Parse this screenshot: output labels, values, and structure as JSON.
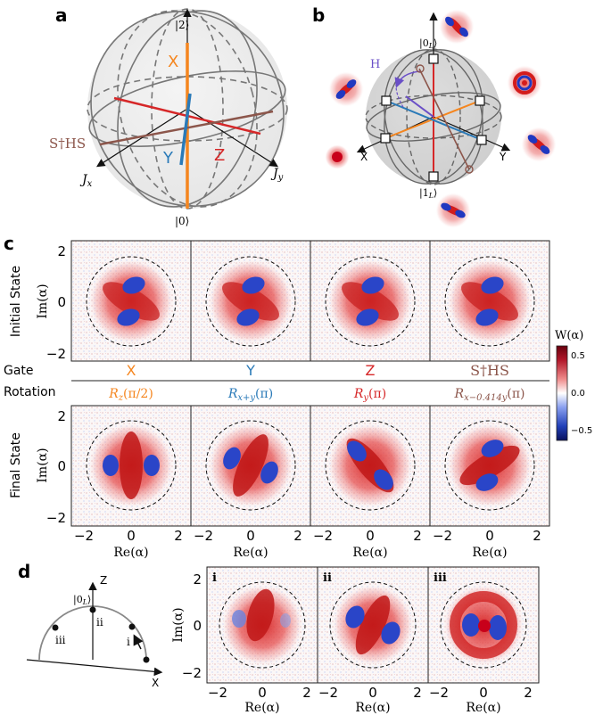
{
  "panel_a": {
    "letter": "a",
    "label_top": "|2⟩",
    "label_bottom": "|0⟩",
    "label_jx": "J",
    "label_jx_sub": "x",
    "label_jy": "J",
    "label_jy_sub": "y",
    "axis_x": "X",
    "axis_y": "Y",
    "axis_z": "Z",
    "axis_sths": "S†HS",
    "colors": {
      "X": "#f5861f",
      "Y": "#2a7ab8",
      "Z": "#d62728",
      "SHS": "#8c564b"
    }
  },
  "panel_b": {
    "letter": "b",
    "label_top": "|0",
    "label_top_sub": "L",
    "label_bottom": "|1",
    "label_bottom_sub": "L",
    "label_h": "H",
    "axis_x": "X",
    "axis_y": "Y",
    "colors": {
      "H": "#6a4fc7"
    }
  },
  "panel_c": {
    "letter": "c",
    "row_label_initial": "Initial State",
    "row_label_final": "Final State",
    "ylabel": "Im(α)",
    "xlabel": "Re(α)",
    "yticks": [
      "2",
      "0",
      "−2"
    ],
    "xticks": [
      "−2",
      "0",
      "2"
    ],
    "gate_label": "Gate",
    "rotation_label": "Rotation",
    "columns": [
      {
        "gate": "X",
        "rotation": "R",
        "rot_sub": "z",
        "rot_arg": "(π/2)",
        "color": "#f5861f"
      },
      {
        "gate": "Y",
        "rotation": "R",
        "rot_sub": "x+y",
        "rot_arg": "(π)",
        "color": "#2a7ab8"
      },
      {
        "gate": "Z",
        "rotation": "R",
        "rot_sub": "y",
        "rot_arg": "(π)",
        "color": "#d62728"
      },
      {
        "gate": "S†HS",
        "rotation": "R",
        "rot_sub": "x−0.414y",
        "rot_arg": "(π)",
        "color": "#8c564b"
      }
    ],
    "colorbar": {
      "title": "W(α)",
      "ticks": [
        "0.5",
        "0.0",
        "−0.5"
      ]
    }
  },
  "panel_d": {
    "letter": "d",
    "label_z": "Z",
    "label_x": "X",
    "label_top": "|0",
    "label_top_sub": "L",
    "points": [
      "i",
      "ii",
      "iii"
    ],
    "ylabel": "Im(α)",
    "xlabel": "Re(α)",
    "yticks": [
      "2",
      "0",
      "−2"
    ],
    "xticks": [
      "−2",
      "0",
      "2"
    ]
  }
}
